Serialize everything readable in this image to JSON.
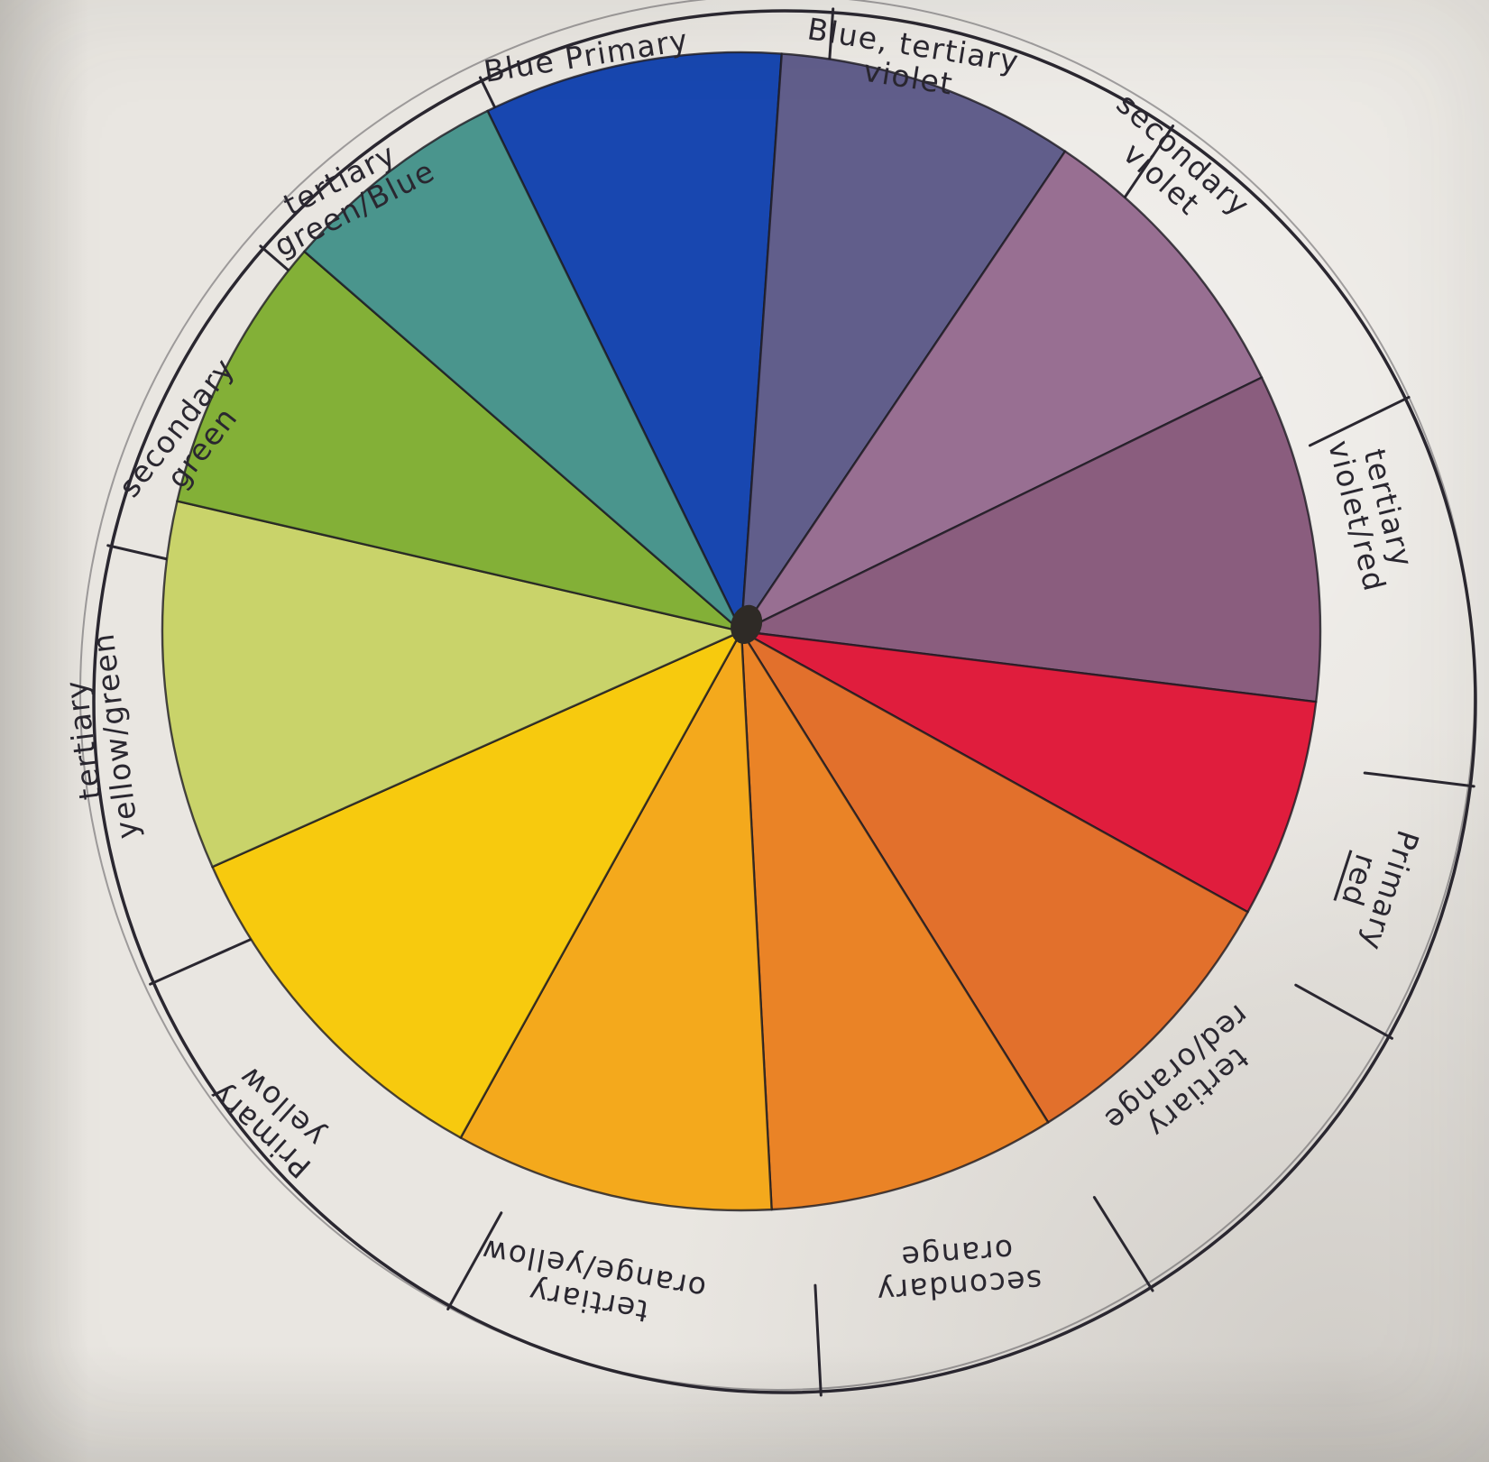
{
  "subject": "hand-painted color wheel worksheet",
  "colors": {
    "paper": "#e9e6e1",
    "ink": "#2a2730"
  },
  "wheel": {
    "type": "pie",
    "segments": [
      {
        "name": "blue",
        "label": "Blue Primary",
        "color": "#1847b0",
        "start_deg": -26,
        "end_deg": 4
      },
      {
        "name": "blue-violet",
        "label": "Blue, tertiary violet",
        "color": "#615e8b",
        "start_deg": 4,
        "end_deg": 34
      },
      {
        "name": "violet",
        "label": "secondary violet",
        "color": "#986f92",
        "start_deg": 34,
        "end_deg": 64
      },
      {
        "name": "red-violet",
        "label": "tertiary violet/red",
        "color": "#8a5d7e",
        "start_deg": 64,
        "end_deg": 97
      },
      {
        "name": "red",
        "label": "Primary red",
        "color": "#e01d3d",
        "start_deg": 97,
        "end_deg": 119
      },
      {
        "name": "red-orange",
        "label": "tertiary red/orange",
        "color": "#e2702c",
        "start_deg": 119,
        "end_deg": 148
      },
      {
        "name": "orange",
        "label": "secondary orange",
        "color": "#ea8326",
        "start_deg": 148,
        "end_deg": 177
      },
      {
        "name": "yellow-orange",
        "label": "tertiary orange/yellow",
        "color": "#f4a91c",
        "start_deg": 177,
        "end_deg": 209
      },
      {
        "name": "yellow",
        "label": "Primary yellow",
        "color": "#f7ca0e",
        "start_deg": 209,
        "end_deg": 246
      },
      {
        "name": "yellow-green",
        "label": "tertiary yellow/green",
        "color": "#c9d36a",
        "start_deg": 246,
        "end_deg": 283
      },
      {
        "name": "green",
        "label": "secondary green",
        "color": "#83b037",
        "start_deg": 283,
        "end_deg": 311
      },
      {
        "name": "blue-green",
        "label": "tertiary green/Blue",
        "color": "#4a958d",
        "start_deg": 311,
        "end_deg": 334
      }
    ]
  },
  "ring_labels": [
    {
      "line1": "Blue Primary",
      "line2": ""
    },
    {
      "line1": "Blue, tertiary",
      "line2": "violet"
    },
    {
      "line1": "secondary",
      "line2": "violet"
    },
    {
      "line1": "tertiary",
      "line2": "violet/red"
    },
    {
      "line1": "Primary",
      "line2": "red"
    },
    {
      "line1": "tertiary",
      "line2": "red/orange"
    },
    {
      "line1": "secondary",
      "line2": "orange"
    },
    {
      "line1": "tertiary",
      "line2": "orange/yellow"
    },
    {
      "line1": "Primary",
      "line2": "yellow"
    },
    {
      "line1": "tertiary",
      "line2": "yellow/green"
    },
    {
      "line1": "secondary",
      "line2": "green"
    },
    {
      "line1": "tertiary",
      "line2": "green/Blue"
    }
  ]
}
